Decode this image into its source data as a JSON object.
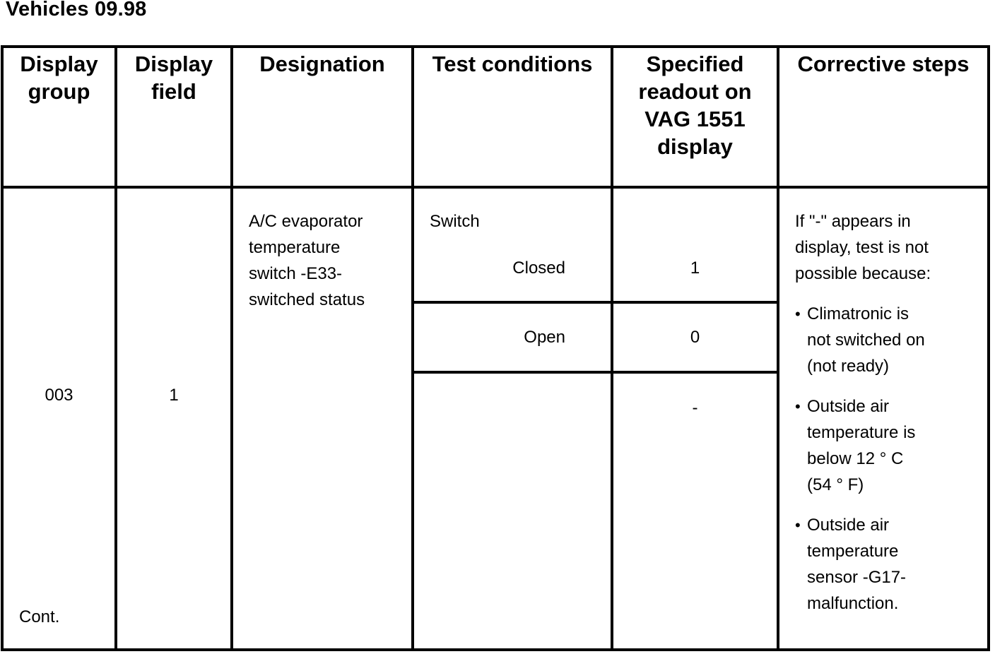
{
  "title": "Vehicles 09.98",
  "colors": {
    "text": "#000000",
    "background": "#ffffff",
    "border": "#000000"
  },
  "table": {
    "headers": {
      "display_group": "Display\ngroup",
      "display_field": "Display\nfield",
      "designation": "Designation",
      "test_conditions": "Test conditions",
      "specified_readout": "Specified\nreadout on\nVAG 1551\ndisplay",
      "corrective_steps": "Corrective steps"
    },
    "row": {
      "display_group": "003",
      "display_group_note": "Cont.",
      "display_field": "1",
      "designation": "A/C evaporator\ntemperature\nswitch -E33-\nswitched status",
      "test_conditions": {
        "label": "Switch",
        "states": [
          {
            "condition": "Closed",
            "readout": "1"
          },
          {
            "condition": "Open",
            "readout": "0"
          },
          {
            "condition": "",
            "readout": "-"
          }
        ]
      },
      "corrective_steps": {
        "intro": "If \"-\" appears in\ndisplay, test is not\npossible because:",
        "bullet_char": "•",
        "bullets": [
          "Climatronic is\nnot switched on\n(not ready)",
          "Outside air\ntemperature is\nbelow 12 ° C\n(54 ° F)",
          "Outside air\ntemperature\nsensor -G17-\nmalfunction."
        ]
      }
    }
  }
}
